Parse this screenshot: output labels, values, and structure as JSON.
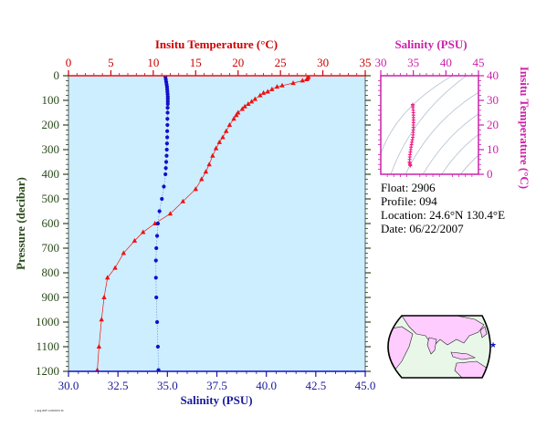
{
  "chart_data": [
    {
      "type": "scatter",
      "top_axis": {
        "label": "Insitu Temperature (°C)",
        "ticks": [
          "0",
          "5",
          "10",
          "15",
          "20",
          "25",
          "30",
          "35"
        ],
        "lim": [
          0,
          35
        ],
        "color": "#cc0000"
      },
      "bottom_axis": {
        "label": "Salinity (PSU)",
        "ticks": [
          "30.0",
          "32.5",
          "35.0",
          "37.5",
          "40.0",
          "42.5",
          "45.0"
        ],
        "lim": [
          30,
          45
        ],
        "color": "#1a1a99"
      },
      "y_axis": {
        "label": "Pressure (decibar)",
        "ticks": [
          "0",
          "100",
          "200",
          "300",
          "400",
          "500",
          "600",
          "700",
          "800",
          "900",
          "1000",
          "1100",
          "1200"
        ],
        "lim": [
          0,
          1200
        ],
        "inverted": true,
        "color": "#2a4a1a"
      },
      "background": "#cceeff",
      "series": [
        {
          "name": "Insitu Temperature (°C)",
          "marker": "triangle",
          "color": "#ee1111",
          "points": [
            [
              28.3,
              5
            ],
            [
              28.2,
              10
            ],
            [
              28.1,
              15
            ],
            [
              27.6,
              20
            ],
            [
              26.5,
              30
            ],
            [
              25.2,
              40
            ],
            [
              24.6,
              45
            ],
            [
              24.0,
              55
            ],
            [
              23.5,
              65
            ],
            [
              23.0,
              70
            ],
            [
              22.6,
              80
            ],
            [
              22.0,
              95
            ],
            [
              21.6,
              105
            ],
            [
              21.2,
              115
            ],
            [
              20.8,
              125
            ],
            [
              20.5,
              135
            ],
            [
              20.0,
              150
            ],
            [
              19.8,
              160
            ],
            [
              19.5,
              175
            ],
            [
              19.0,
              200
            ],
            [
              18.6,
              225
            ],
            [
              18.2,
              250
            ],
            [
              17.8,
              270
            ],
            [
              17.4,
              295
            ],
            [
              17.0,
              325
            ],
            [
              16.6,
              360
            ],
            [
              16.2,
              390
            ],
            [
              15.7,
              420
            ],
            [
              15.0,
              460
            ],
            [
              13.5,
              510
            ],
            [
              12.0,
              560
            ],
            [
              10.2,
              600
            ],
            [
              8.8,
              635
            ],
            [
              7.8,
              670
            ],
            [
              6.5,
              720
            ],
            [
              5.5,
              780
            ],
            [
              4.6,
              820
            ],
            [
              4.2,
              900
            ],
            [
              3.9,
              990
            ],
            [
              3.6,
              1100
            ],
            [
              3.4,
              1195
            ]
          ]
        },
        {
          "name": "Salinity (PSU)",
          "marker": "circle",
          "color": "#1111cc",
          "points": [
            [
              34.9,
              5
            ],
            [
              34.92,
              15
            ],
            [
              34.94,
              25
            ],
            [
              34.96,
              35
            ],
            [
              34.98,
              45
            ],
            [
              34.99,
              55
            ],
            [
              35.0,
              65
            ],
            [
              35.01,
              75
            ],
            [
              35.02,
              85
            ],
            [
              35.02,
              95
            ],
            [
              35.02,
              105
            ],
            [
              35.02,
              115
            ],
            [
              35.01,
              130
            ],
            [
              35.01,
              150
            ],
            [
              35.0,
              175
            ],
            [
              35.0,
              200
            ],
            [
              34.99,
              225
            ],
            [
              34.99,
              250
            ],
            [
              34.98,
              275
            ],
            [
              34.97,
              300
            ],
            [
              34.96,
              325
            ],
            [
              34.94,
              350
            ],
            [
              34.92,
              375
            ],
            [
              34.9,
              400
            ],
            [
              34.82,
              450
            ],
            [
              34.72,
              500
            ],
            [
              34.6,
              550
            ],
            [
              34.52,
              600
            ],
            [
              34.48,
              650
            ],
            [
              34.44,
              700
            ],
            [
              34.42,
              750
            ],
            [
              34.42,
              820
            ],
            [
              34.44,
              900
            ],
            [
              34.48,
              1000
            ],
            [
              34.52,
              1100
            ],
            [
              34.55,
              1195
            ]
          ]
        }
      ]
    },
    {
      "type": "scatter",
      "top_axis": {
        "label": "Salinity (PSU)",
        "ticks": [
          "30",
          "35",
          "40",
          "45"
        ],
        "lim": [
          30,
          45
        ],
        "color": "#cc22aa"
      },
      "right_axis": {
        "label": "Insitu Temperature (°C)",
        "ticks": [
          "0",
          "10",
          "20",
          "30",
          "40"
        ],
        "lim": [
          0,
          40
        ],
        "color": "#cc22aa"
      },
      "series": [
        {
          "name": "T-S",
          "marker": "plus",
          "color": "#ee2288",
          "points": [
            [
              34.9,
              28.3
            ],
            [
              34.92,
              27.8
            ],
            [
              34.95,
              27.0
            ],
            [
              34.98,
              26.0
            ],
            [
              35.0,
              25.0
            ],
            [
              35.01,
              24.0
            ],
            [
              35.02,
              23.0
            ],
            [
              35.02,
              22.0
            ],
            [
              35.02,
              21.0
            ],
            [
              35.01,
              20.0
            ],
            [
              35.0,
              19.0
            ],
            [
              34.99,
              18.0
            ],
            [
              34.98,
              17.0
            ],
            [
              34.96,
              16.0
            ],
            [
              34.92,
              15.0
            ],
            [
              34.85,
              14.0
            ],
            [
              34.78,
              13.0
            ],
            [
              34.72,
              12.0
            ],
            [
              34.65,
              11.0
            ],
            [
              34.6,
              10.0
            ],
            [
              34.55,
              9.0
            ],
            [
              34.5,
              8.0
            ],
            [
              34.46,
              7.0
            ],
            [
              34.43,
              6.0
            ],
            [
              34.42,
              5.0
            ],
            [
              34.44,
              4.5
            ],
            [
              34.48,
              4.0
            ],
            [
              34.52,
              3.8
            ],
            [
              34.55,
              3.5
            ]
          ]
        }
      ]
    }
  ],
  "float_info": {
    "float": "Float:  2906",
    "profile": "Profile:  094",
    "location": "Location:  24.6°N  130.4°E",
    "date": "Date:  06/22/2007"
  },
  "footer_note": "1 Aug 2007 12:00:00 UTC"
}
